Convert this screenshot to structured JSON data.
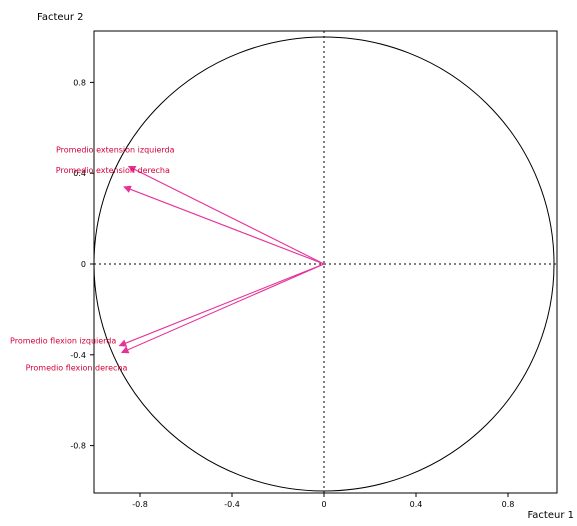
{
  "chart_data": {
    "type": "scatter",
    "subtype": "correlation-circle",
    "title": "",
    "xlabel": "Facteur 1",
    "ylabel": "Facteur 2",
    "xlim": [
      -1,
      1
    ],
    "ylim": [
      -1,
      1
    ],
    "x_ticks": [
      {
        "value": -0.8,
        "label": "-0.8"
      },
      {
        "value": -0.4,
        "label": "-0.4"
      },
      {
        "value": 0,
        "label": "0"
      },
      {
        "value": 0.4,
        "label": "0.4"
      },
      {
        "value": 0.8,
        "label": "0.8"
      }
    ],
    "y_ticks": [
      {
        "value": 0.8,
        "label": "0.8"
      },
      {
        "value": 0.4,
        "label": "0.4"
      },
      {
        "value": 0,
        "label": "0"
      },
      {
        "value": -0.4,
        "label": "-0.4"
      },
      {
        "value": -0.8,
        "label": "-0.8"
      }
    ],
    "grid": false,
    "unit_circle": true,
    "zero_lines": true,
    "vectors": [
      {
        "label": "Promedio extension izquierda",
        "x": -0.85,
        "y": 0.43,
        "color": "#e8309a",
        "label_color": "#d4003a",
        "label_anchor": "end"
      },
      {
        "label": "Promedio extension derecha",
        "x": -0.87,
        "y": 0.34,
        "color": "#e8309a",
        "label_color": "#d4003a",
        "label_anchor": "end"
      },
      {
        "label": "Promedio flexion izquierda",
        "x": -0.89,
        "y": -0.36,
        "color": "#e8309a",
        "label_color": "#d4003a",
        "label_anchor": "end"
      },
      {
        "label": "Promedio flexion derecha",
        "x": -0.88,
        "y": -0.39,
        "color": "#e8309a",
        "label_color": "#d4003a",
        "label_anchor": "start"
      }
    ]
  }
}
